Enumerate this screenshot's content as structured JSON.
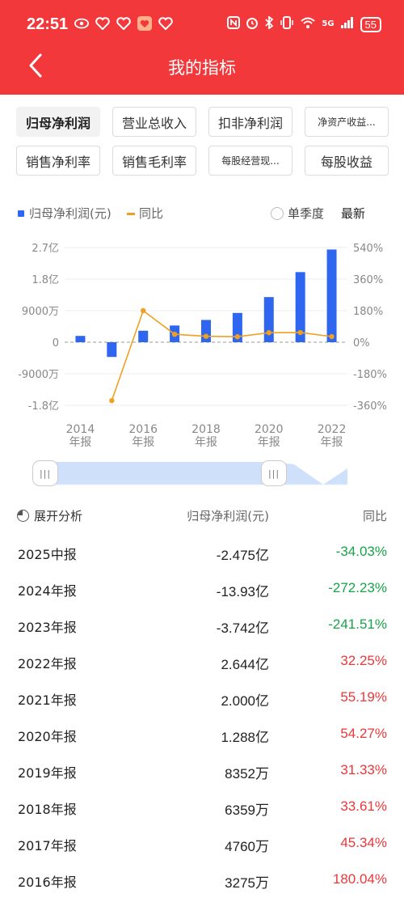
{
  "status_bar": {
    "time": "22:51",
    "battery": "55",
    "network": "5G",
    "icons": [
      "eye-icon",
      "heart-icon",
      "heart-icon",
      "app-icon",
      "heart-icon",
      "nfc-icon",
      "alarm-icon",
      "bluetooth-icon",
      "vibrate-icon",
      "wifi-icon",
      "signal-icon",
      "battery-icon"
    ]
  },
  "header": {
    "title": "我的指标",
    "back_icon": "back-arrow-icon"
  },
  "tabs": [
    {
      "label": "归母净利润",
      "active": true
    },
    {
      "label": "营业总收入",
      "active": false
    },
    {
      "label": "扣非净利润",
      "active": false
    },
    {
      "label": "净资产收益...",
      "active": false
    },
    {
      "label": "销售净利率",
      "active": false
    },
    {
      "label": "销售毛利率",
      "active": false
    },
    {
      "label": "每股经营现...",
      "active": false
    },
    {
      "label": "每股收益",
      "active": false
    }
  ],
  "legend": {
    "bar_label": "归母净利润(元)",
    "line_label": "同比",
    "quarter_label": "单季度",
    "latest_label": "最新"
  },
  "colors": {
    "brand": "#f2383a",
    "bar": "#2f66f0",
    "line": "#f0a020",
    "positive": "#e8383a",
    "negative": "#17a34a"
  },
  "chart_data": {
    "type": "bar",
    "categories": [
      "2014",
      "2015",
      "2016",
      "2017",
      "2018",
      "2019",
      "2020",
      "2021",
      "2022"
    ],
    "x_tick_labels": [
      {
        "year": "2014",
        "sub": "年报"
      },
      {
        "year": "2016",
        "sub": "年报"
      },
      {
        "year": "2018",
        "sub": "年报"
      },
      {
        "year": "2020",
        "sub": "年报"
      },
      {
        "year": "2022",
        "sub": "年报"
      }
    ],
    "series": [
      {
        "name": "归母净利润(元)",
        "type": "bar",
        "axis": "left",
        "values": [
          18000000,
          -42000000,
          32750000,
          47600000,
          63590000,
          83520000,
          128800000,
          200000000,
          264400000
        ]
      },
      {
        "name": "同比",
        "type": "line",
        "axis": "right",
        "values": [
          null,
          -333,
          180.04,
          45.34,
          33.61,
          31.33,
          54.27,
          55.19,
          32.25
        ]
      }
    ],
    "left_axis": {
      "ticks": [
        "2.7亿",
        "1.8亿",
        "9000万",
        "0",
        "-9000万",
        "-1.8亿"
      ],
      "range": [
        -180000000,
        270000000
      ]
    },
    "right_axis": {
      "ticks": [
        "540%",
        "360%",
        "180%",
        "0%",
        "-180%",
        "-360%"
      ],
      "range": [
        -360,
        540
      ]
    }
  },
  "slider": {
    "handle_glyph": "|||",
    "range_start": 0,
    "range_end": 0.76
  },
  "analysis": {
    "expand_label": "展开分析",
    "value_header": "归母净利润(元)",
    "yoy_header": "同比",
    "rows": [
      {
        "period": "2025中报",
        "value": "-2.475亿",
        "yoy": "-34.03%",
        "dir": "neg"
      },
      {
        "period": "2024年报",
        "value": "-13.93亿",
        "yoy": "-272.23%",
        "dir": "neg"
      },
      {
        "period": "2023年报",
        "value": "-3.742亿",
        "yoy": "-241.51%",
        "dir": "neg"
      },
      {
        "period": "2022年报",
        "value": "2.644亿",
        "yoy": "32.25%",
        "dir": "pos"
      },
      {
        "period": "2021年报",
        "value": "2.000亿",
        "yoy": "55.19%",
        "dir": "pos"
      },
      {
        "period": "2020年报",
        "value": "1.288亿",
        "yoy": "54.27%",
        "dir": "pos"
      },
      {
        "period": "2019年报",
        "value": "8352万",
        "yoy": "31.33%",
        "dir": "pos"
      },
      {
        "period": "2018年报",
        "value": "6359万",
        "yoy": "33.61%",
        "dir": "pos"
      },
      {
        "period": "2017年报",
        "value": "4760万",
        "yoy": "45.34%",
        "dir": "pos"
      },
      {
        "period": "2016年报",
        "value": "3275万",
        "yoy": "180.04%",
        "dir": "pos"
      }
    ]
  }
}
